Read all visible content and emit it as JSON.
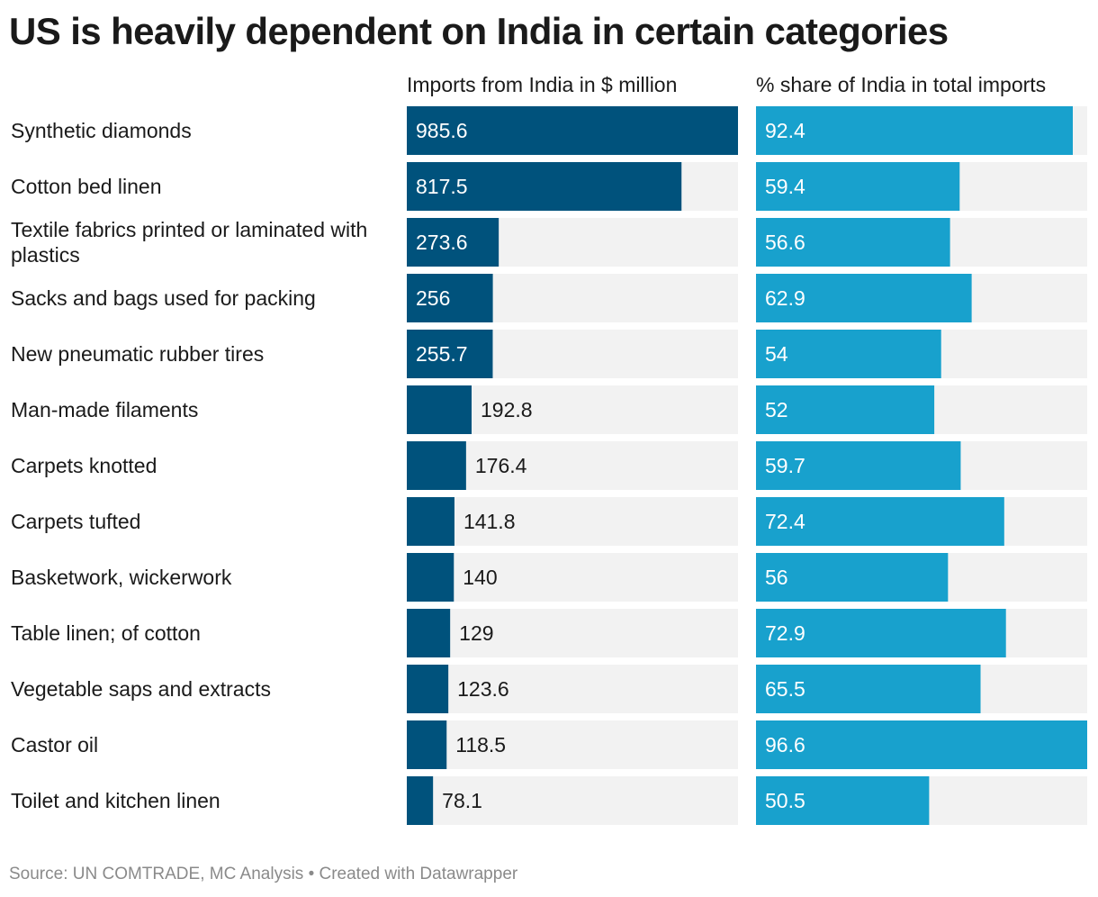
{
  "title": "US is heavily dependent on India in certain categories",
  "source": "Source: UN COMTRADE, MC Analysis • Created with Datawrapper",
  "colors": {
    "imports_bar": "#00527c",
    "share_bar": "#18a1cd",
    "track": "#f2f2f2"
  },
  "chart_data": {
    "type": "bar",
    "orientation": "horizontal",
    "categories": [
      [
        "Synthetic diamonds"
      ],
      [
        "Cotton bed linen"
      ],
      [
        "Textile fabrics printed or laminated with",
        "plastics"
      ],
      [
        "Sacks and bags used for packing"
      ],
      [
        "New pneumatic rubber tires"
      ],
      [
        "Man-made filaments"
      ],
      [
        "Carpets knotted"
      ],
      [
        "Carpets tufted"
      ],
      [
        "Basketwork, wickerwork"
      ],
      [
        "Table linen; of cotton"
      ],
      [
        "Vegetable saps and extracts"
      ],
      [
        "Castor oil"
      ],
      [
        "Toilet and kitchen linen"
      ]
    ],
    "series": [
      {
        "name": "Imports from India in $ million",
        "values": [
          985.6,
          817.5,
          273.6,
          256,
          255.7,
          192.8,
          176.4,
          141.8,
          140,
          129,
          123.6,
          118.5,
          78.1
        ],
        "labels": [
          "985.6",
          "817.5",
          "273.6",
          "256",
          "255.7",
          "192.8",
          "176.4",
          "141.8",
          "140",
          "129",
          "123.6",
          "118.5",
          "78.1"
        ],
        "range": [
          0,
          985.6
        ]
      },
      {
        "name": "% share of India in total imports",
        "values": [
          92.4,
          59.4,
          56.6,
          62.9,
          54,
          52,
          59.7,
          72.4,
          56,
          72.9,
          65.5,
          96.6,
          50.5
        ],
        "labels": [
          "92.4",
          "59.4",
          "56.6",
          "62.9",
          "54",
          "52",
          "59.7",
          "72.4",
          "56",
          "72.9",
          "65.5",
          "96.6",
          "50.5"
        ],
        "range": [
          0,
          96.6
        ]
      }
    ],
    "grid": false,
    "legend": "none"
  }
}
